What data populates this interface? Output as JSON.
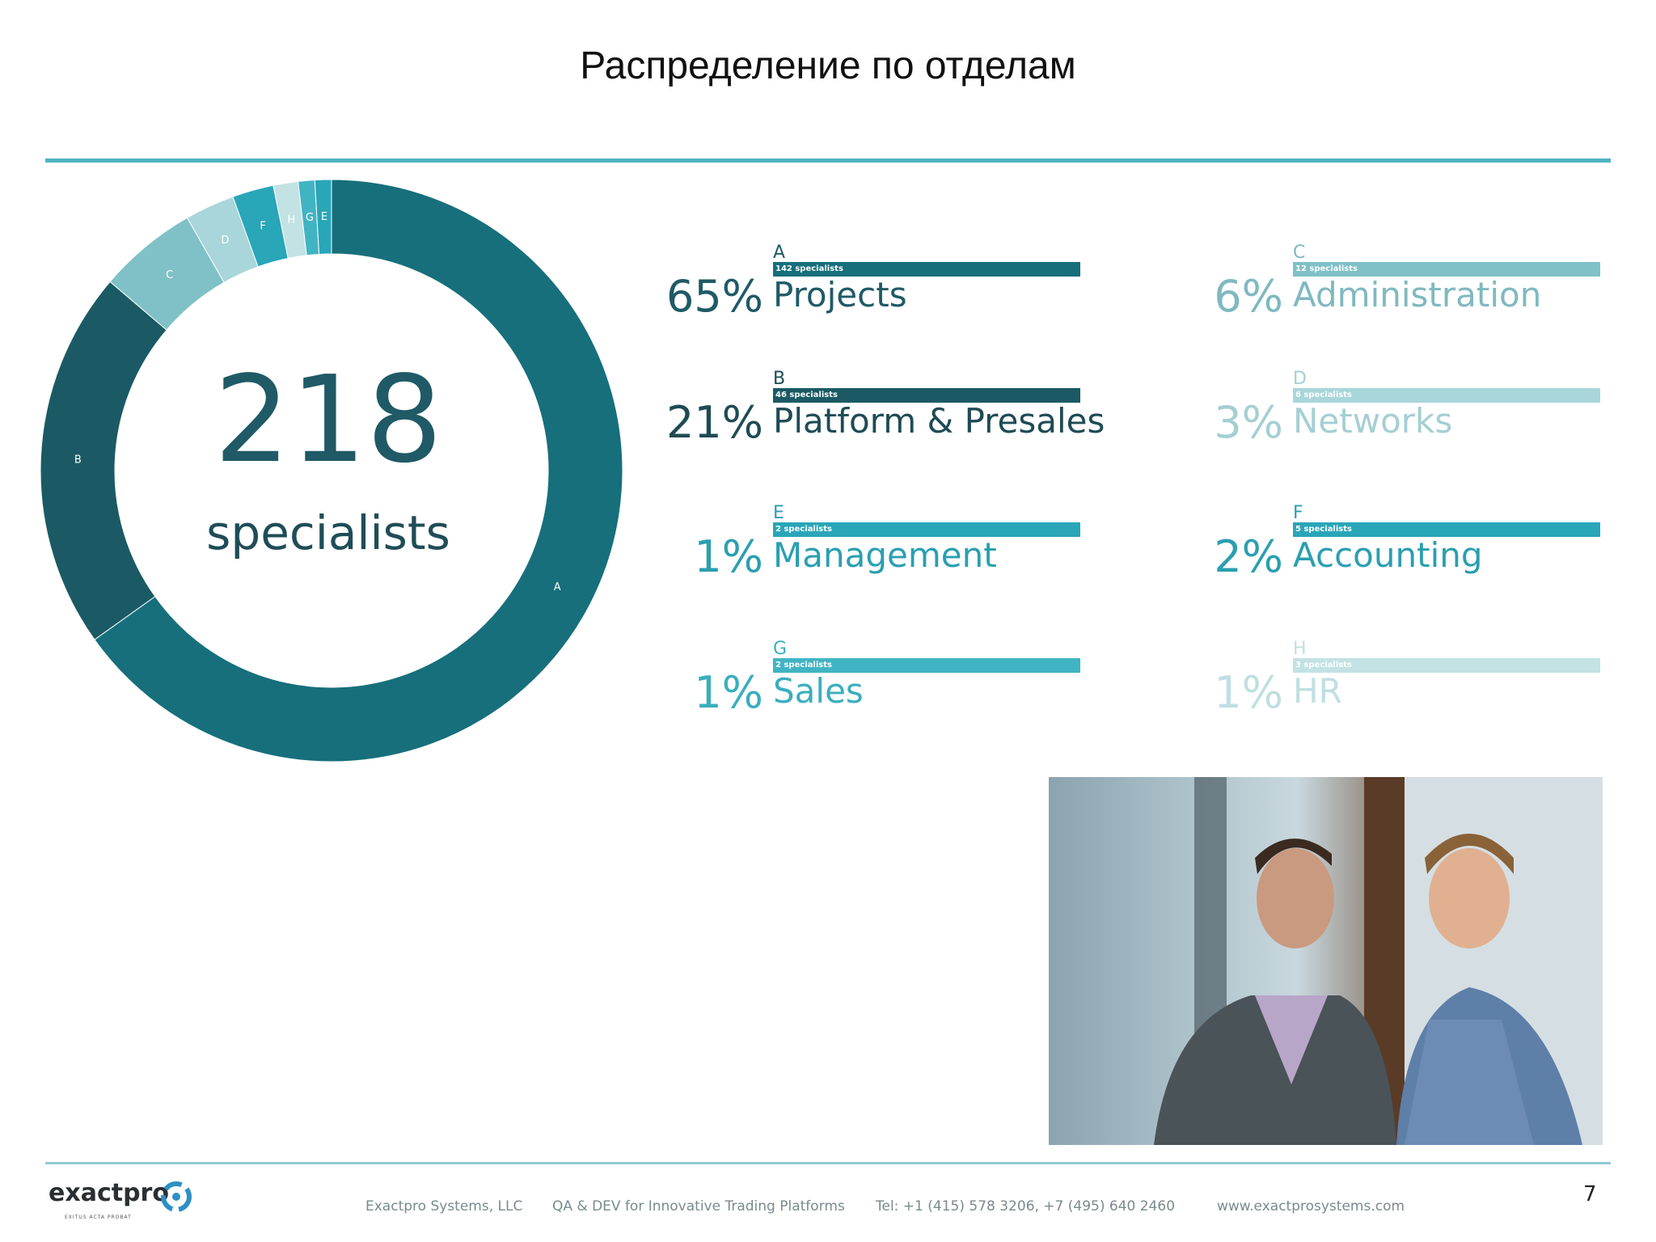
{
  "title": "Распределение по отделам",
  "center": {
    "number": "218",
    "label": "specialists"
  },
  "colors": {
    "accent": "#4fb3c1",
    "projects": "#176f7c",
    "platform": "#1b5a64",
    "administration": "#7fc1c7",
    "networks": "#a8d6da",
    "management": "#29a6b8",
    "accounting": "#29a6b8",
    "sales": "#41b4c3",
    "hr": "#c2e2e4"
  },
  "chart_data": {
    "type": "pie",
    "style": "donut",
    "total": 218,
    "slice_labels_on_chart": [
      "A",
      "B",
      "C",
      "D",
      "F",
      "H",
      "G",
      "E"
    ],
    "slices": [
      {
        "letter": "A",
        "name": "Projects",
        "percent": "65%",
        "count_label": "142 specialists",
        "value": 142,
        "color": "#176f7c"
      },
      {
        "letter": "B",
        "name": "Platform & Presales",
        "percent": "21%",
        "count_label": "46 specialists",
        "value": 46,
        "color": "#1b5a64"
      },
      {
        "letter": "C",
        "name": "Administration",
        "percent": "6%",
        "count_label": "12 specialists",
        "value": 12,
        "color": "#7fc1c7"
      },
      {
        "letter": "D",
        "name": "Networks",
        "percent": "3%",
        "count_label": "6 specialists",
        "value": 6,
        "color": "#a8d6da"
      },
      {
        "letter": "F",
        "name": "Accounting",
        "percent": "2%",
        "count_label": "5 specialists",
        "value": 5,
        "color": "#29a6b8"
      },
      {
        "letter": "H",
        "name": "HR",
        "percent": "1%",
        "count_label": "3 specialists",
        "value": 3,
        "color": "#c2e2e4"
      },
      {
        "letter": "G",
        "name": "Sales",
        "percent": "1%",
        "count_label": "2 specialists",
        "value": 2,
        "color": "#41b4c3"
      },
      {
        "letter": "E",
        "name": "Management",
        "percent": "1%",
        "count_label": "2 specialists",
        "value": 2,
        "color": "#29a6b8"
      }
    ]
  },
  "departments": [
    {
      "letter": "A",
      "count_label": "142 specialists",
      "name": "Projects",
      "percent": "65%",
      "color": "#176f7c",
      "text_color": "#1f5a66"
    },
    {
      "letter": "C",
      "count_label": "12 specialists",
      "name": "Administration",
      "percent": "6%",
      "color": "#7fc1c7",
      "text_color": "#7fb9bf"
    },
    {
      "letter": "B",
      "count_label": "46 specialists",
      "name": "Platform & Presales",
      "percent": "21%",
      "color": "#1b5a64",
      "text_color": "#1e4b54"
    },
    {
      "letter": "D",
      "count_label": "6 specialists",
      "name": "Networks",
      "percent": "3%",
      "color": "#a8d6da",
      "text_color": "#a4cfd3"
    },
    {
      "letter": "E",
      "count_label": "2 specialists",
      "name": "Management",
      "percent": "1%",
      "color": "#29a6b8",
      "text_color": "#2a9fb0"
    },
    {
      "letter": "F",
      "count_label": "5 specialists",
      "name": "Accounting",
      "percent": "2%",
      "color": "#29a6b8",
      "text_color": "#2a9fb0"
    },
    {
      "letter": "G",
      "count_label": "2 specialists",
      "name": "Sales",
      "percent": "1%",
      "color": "#41b4c3",
      "text_color": "#3aaebe"
    },
    {
      "letter": "H",
      "count_label": "3 specialists",
      "name": "HR",
      "percent": "1%",
      "color": "#c2e2e4",
      "text_color": "#c0dfe2"
    }
  ],
  "footer": {
    "logo": "exactpro",
    "tagline": "EXITUS ACTA PROBAT",
    "company": "Exactpro Systems, LLC",
    "slogan": "QA & DEV for Innovative Trading Platforms",
    "phone": "Tel: +1 (415) 578 3206, +7 (495) 640 2460",
    "website": "www.exactprosystems.com",
    "page": "7"
  }
}
